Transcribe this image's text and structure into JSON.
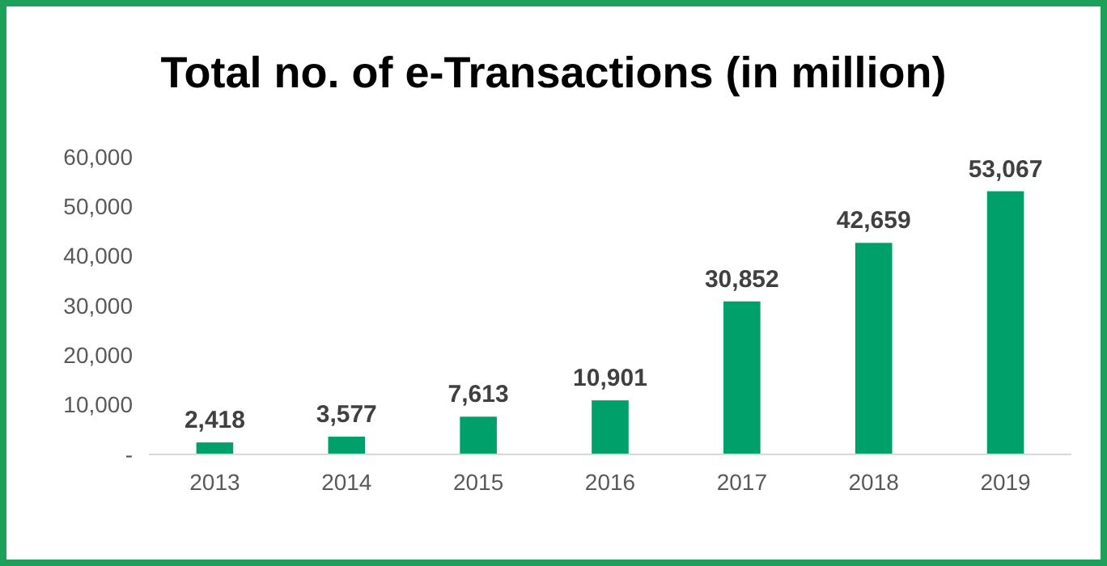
{
  "chart_data": {
    "type": "bar",
    "title": "Total no. of e-Transactions (in million)",
    "categories": [
      "2013",
      "2014",
      "2015",
      "2016",
      "2017",
      "2018",
      "2019"
    ],
    "values": [
      2418,
      3577,
      7613,
      10901,
      30852,
      42659,
      53067
    ],
    "value_labels": [
      "2,418",
      "3,577",
      "7,613",
      "10,901",
      "30,852",
      "42,659",
      "53,067"
    ],
    "color": "#00a06b",
    "ylim": [
      0,
      60000
    ],
    "yticks": [
      {
        "value": 0,
        "label": "-"
      },
      {
        "value": 10000,
        "label": "10,000"
      },
      {
        "value": 20000,
        "label": "20,000"
      },
      {
        "value": 30000,
        "label": "30,000"
      },
      {
        "value": 40000,
        "label": "40,000"
      },
      {
        "value": 50000,
        "label": "50,000"
      },
      {
        "value": 60000,
        "label": "60,000"
      }
    ],
    "grid": false
  }
}
